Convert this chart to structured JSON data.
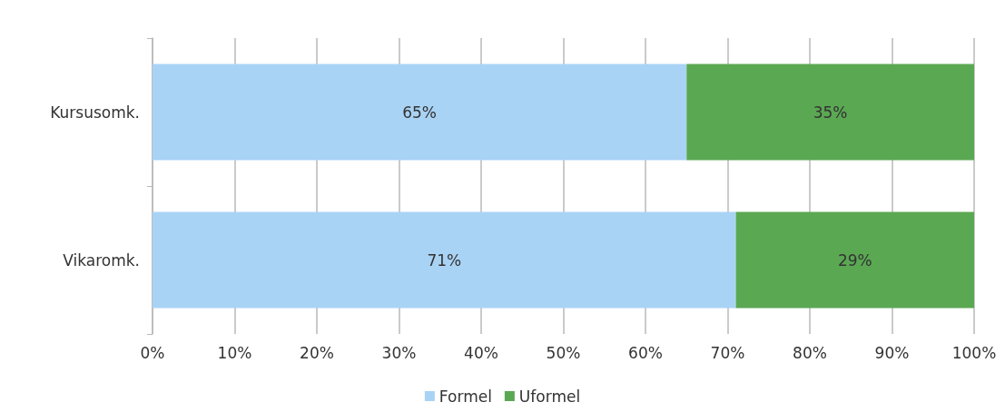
{
  "chart_data": {
    "type": "bar",
    "orientation": "horizontal",
    "stacked": true,
    "categories": [
      "Kursusomk.",
      "Vikaromk."
    ],
    "series": [
      {
        "name": "Formel",
        "color": "#a9d3f5",
        "values": [
          65,
          71
        ],
        "value_labels": [
          "65%",
          "71%"
        ]
      },
      {
        "name": "Uformel",
        "color": "#5ba853",
        "values": [
          35,
          29
        ],
        "value_labels": [
          "35%",
          "29%"
        ]
      }
    ],
    "xlim": [
      0,
      100
    ],
    "xticks": [
      {
        "value": 0,
        "label": "0%"
      },
      {
        "value": 10,
        "label": "10%"
      },
      {
        "value": 20,
        "label": "20%"
      },
      {
        "value": 30,
        "label": "30%"
      },
      {
        "value": 40,
        "label": "40%"
      },
      {
        "value": 50,
        "label": "50%"
      },
      {
        "value": 60,
        "label": "60%"
      },
      {
        "value": 70,
        "label": "70%"
      },
      {
        "value": 80,
        "label": "80%"
      },
      {
        "value": 90,
        "label": "90%"
      },
      {
        "value": 100,
        "label": "100%"
      }
    ],
    "grid": "x",
    "legend": "bottom"
  }
}
